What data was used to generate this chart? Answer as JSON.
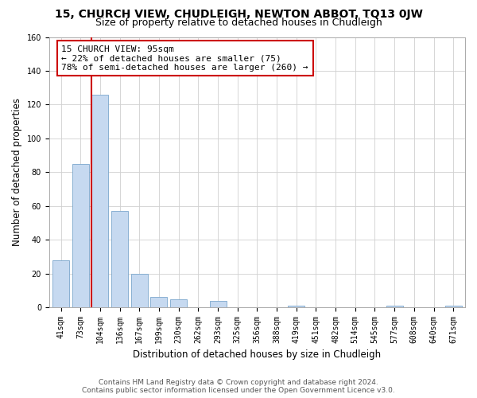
{
  "title": "15, CHURCH VIEW, CHUDLEIGH, NEWTON ABBOT, TQ13 0JW",
  "subtitle": "Size of property relative to detached houses in Chudleigh",
  "xlabel": "Distribution of detached houses by size in Chudleigh",
  "ylabel": "Number of detached properties",
  "bar_labels": [
    "41sqm",
    "73sqm",
    "104sqm",
    "136sqm",
    "167sqm",
    "199sqm",
    "230sqm",
    "262sqm",
    "293sqm",
    "325sqm",
    "356sqm",
    "388sqm",
    "419sqm",
    "451sqm",
    "482sqm",
    "514sqm",
    "545sqm",
    "577sqm",
    "608sqm",
    "640sqm",
    "671sqm"
  ],
  "bar_values": [
    28,
    85,
    126,
    57,
    20,
    6,
    5,
    0,
    4,
    0,
    0,
    0,
    1,
    0,
    0,
    0,
    0,
    1,
    0,
    0,
    1
  ],
  "bar_color": "#c6d9f0",
  "bar_edge_color": "#7aa6cc",
  "marker_line_color": "#cc0000",
  "annotation_line1": "15 CHURCH VIEW: 95sqm",
  "annotation_line2": "← 22% of detached houses are smaller (75)",
  "annotation_line3": "78% of semi-detached houses are larger (260) →",
  "annotation_box_color": "#ffffff",
  "annotation_box_edge": "#cc0000",
  "ylim": [
    0,
    160
  ],
  "yticks": [
    0,
    20,
    40,
    60,
    80,
    100,
    120,
    140,
    160
  ],
  "footer_line1": "Contains HM Land Registry data © Crown copyright and database right 2024.",
  "footer_line2": "Contains public sector information licensed under the Open Government Licence v3.0.",
  "bg_color": "#ffffff",
  "grid_color": "#d0d0d0",
  "title_fontsize": 10,
  "subtitle_fontsize": 9,
  "axis_label_fontsize": 8.5,
  "tick_fontsize": 7,
  "footer_fontsize": 6.5,
  "annotation_fontsize": 8
}
